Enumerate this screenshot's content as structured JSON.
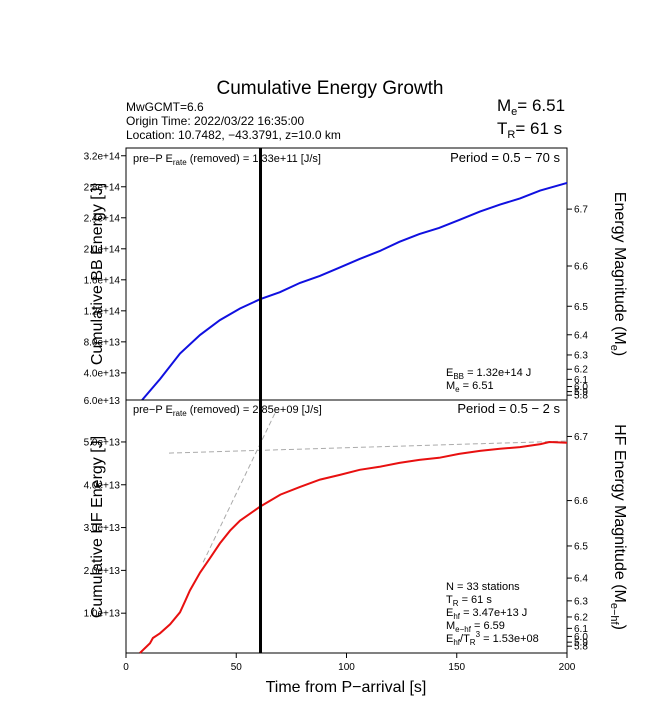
{
  "title": "Cumulative Energy Growth",
  "header": {
    "lines": [
      "MwGCMT=6.6",
      "Origin Time: 2022/03/22 16:35:00",
      "Location: 10.7482, −43.3791, z=10.0 km"
    ],
    "me": [
      "M",
      "e",
      "= 6.51"
    ],
    "tr": [
      "T",
      "R",
      "= 61 s"
    ]
  },
  "chart_data": [
    {
      "type": "line",
      "ylabel": "Cumulative BB Energy [J]",
      "y2label": [
        "Energy Magnitude (M",
        "e",
        ")"
      ],
      "xlim": [
        0,
        200
      ],
      "ylim": [
        5000000000000.0,
        330000000000000.0
      ],
      "ymin_label": "6.0e+13",
      "yticks": [
        {
          "value": 40000000000000.0,
          "label": "4.0e+13"
        },
        {
          "value": 80000000000000.0,
          "label": "8.0e+13"
        },
        {
          "value": 120000000000000.0,
          "label": "1.2e+14"
        },
        {
          "value": 160000000000000.0,
          "label": "1.6e+14"
        },
        {
          "value": 200000000000000.0,
          "label": "2.0e+14"
        },
        {
          "value": 240000000000000.0,
          "label": "2.4e+14"
        },
        {
          "value": 280000000000000.0,
          "label": "2.8e+14"
        },
        {
          "value": 320000000000000.0,
          "label": "3.2e+14"
        }
      ],
      "y2ticks": [
        6.7,
        6.6,
        6.5,
        6.4,
        6.3,
        6.2,
        6.1,
        {
          "value": 6,
          "label": "6.0"
        },
        5.9,
        5.8
      ],
      "x": [
        7.3,
        15.4,
        24.5,
        33.6,
        42.6,
        51.7,
        60.8,
        69.8,
        78.9,
        87.9,
        97,
        106,
        115,
        124,
        133,
        142,
        151,
        160.5,
        169.6,
        178.7,
        187.8,
        200
      ],
      "series": [
        {
          "color": "#1010e0",
          "values": [
            5000000000000.0,
            32000000000000.0,
            65000000000000.0,
            89000000000000.0,
            108000000000000.0,
            123000000000000.0,
            135000000000000.0,
            144000000000000.0,
            156000000000000.0,
            165000000000000.0,
            176000000000000.0,
            187000000000000.0,
            197000000000000.0,
            209000000000000.0,
            219000000000000.0,
            227000000000000.0,
            237000000000000.0,
            248000000000000.0,
            257000000000000.0,
            265000000000000.0,
            275000000000000.0,
            285000000000000.0
          ]
        }
      ],
      "vline_x": 61,
      "pre_p": [
        "pre−P E",
        "rate",
        " (removed) = 1.33e+11 [J/s]"
      ],
      "period": "Period = 0.5 − 70 s",
      "notes": [
        [
          "E",
          "BB",
          " = 1.32e+14 J"
        ],
        [
          "M",
          "e",
          " = 6.51"
        ]
      ]
    },
    {
      "type": "line",
      "ylabel": "Cumulative HF Energy [J]",
      "y2label": [
        "HF Energy Magnitude (M",
        "e−hf",
        ")"
      ],
      "xlabel": "Time from P−arrival [s]",
      "xlim": [
        0,
        200
      ],
      "xticks": [
        0,
        50,
        100,
        150,
        200
      ],
      "ylim": [
        700000000000.0,
        59800000000000.0
      ],
      "yticks": [
        {
          "value": 10000000000000.0,
          "label": "1.0e+13"
        },
        {
          "value": 20000000000000.0,
          "label": "2.0e+13"
        },
        {
          "value": 30000000000000.0,
          "label": "3.0e+13"
        },
        {
          "value": 40000000000000.0,
          "label": "4.0e+13"
        },
        {
          "value": 50000000000000.0,
          "label": "5.0e+13"
        }
      ],
      "y2ticks": [
        6.7,
        6.6,
        6.5,
        6.4,
        6.3,
        6.2,
        6.1,
        {
          "value": 6,
          "label": "6.0"
        },
        5.9,
        5.8
      ],
      "x": [
        6.3,
        10.9,
        12.2,
        15.4,
        20,
        24.5,
        26.8,
        29,
        33.6,
        38,
        42.6,
        47.2,
        51.7,
        60.8,
        70,
        78.9,
        88,
        97,
        106,
        115,
        124,
        133,
        142,
        151,
        160.5,
        169.6,
        178.7,
        188,
        192,
        200
      ],
      "series": [
        {
          "color": "#e81010",
          "values": [
            700000000000.0,
            3000000000000.0,
            4200000000000.0,
            5300000000000.0,
            7400000000000.0,
            10200000000000.0,
            12800000000000.0,
            15300000000000.0,
            19500000000000.0,
            22800000000000.0,
            26300000000000.0,
            29300000000000.0,
            31600000000000.0,
            34900000000000.0,
            37700000000000.0,
            39500000000000.0,
            41200000000000.0,
            42300000000000.0,
            43500000000000.0,
            44200000000000.0,
            45100000000000.0,
            45800000000000.0,
            46300000000000.0,
            47200000000000.0,
            47900000000000.0,
            48400000000000.0,
            48800000000000.0,
            49500000000000.0,
            50000000000000.0,
            49800000000000.0
          ]
        }
      ],
      "guide_lines": {
        "color": "#aaaaaa",
        "lines": [
          {
            "x": [
              19.5,
              200
            ],
            "values": [
              47400000000000.0,
              50200000000000.0
            ]
          },
          {
            "x": [
              35,
              68
            ],
            "values": [
              21900000000000.0,
              57200000000000.0
            ]
          }
        ]
      },
      "vline_x": 61,
      "pre_p": [
        "pre−P E",
        "rate",
        " (removed) = 2.85e+09 [J/s]"
      ],
      "period": "Period = 0.5 − 2 s",
      "stations": "N = 33 stations",
      "notes": [
        [
          "T",
          "R",
          " = 61  s"
        ],
        [
          "E",
          "hf",
          " = 3.47e+13 J"
        ],
        [
          "M",
          "e−hf",
          " = 6.59"
        ],
        [
          "E",
          "hf",
          "/T",
          "R",
          "3",
          " = 1.53e+08"
        ]
      ]
    }
  ]
}
